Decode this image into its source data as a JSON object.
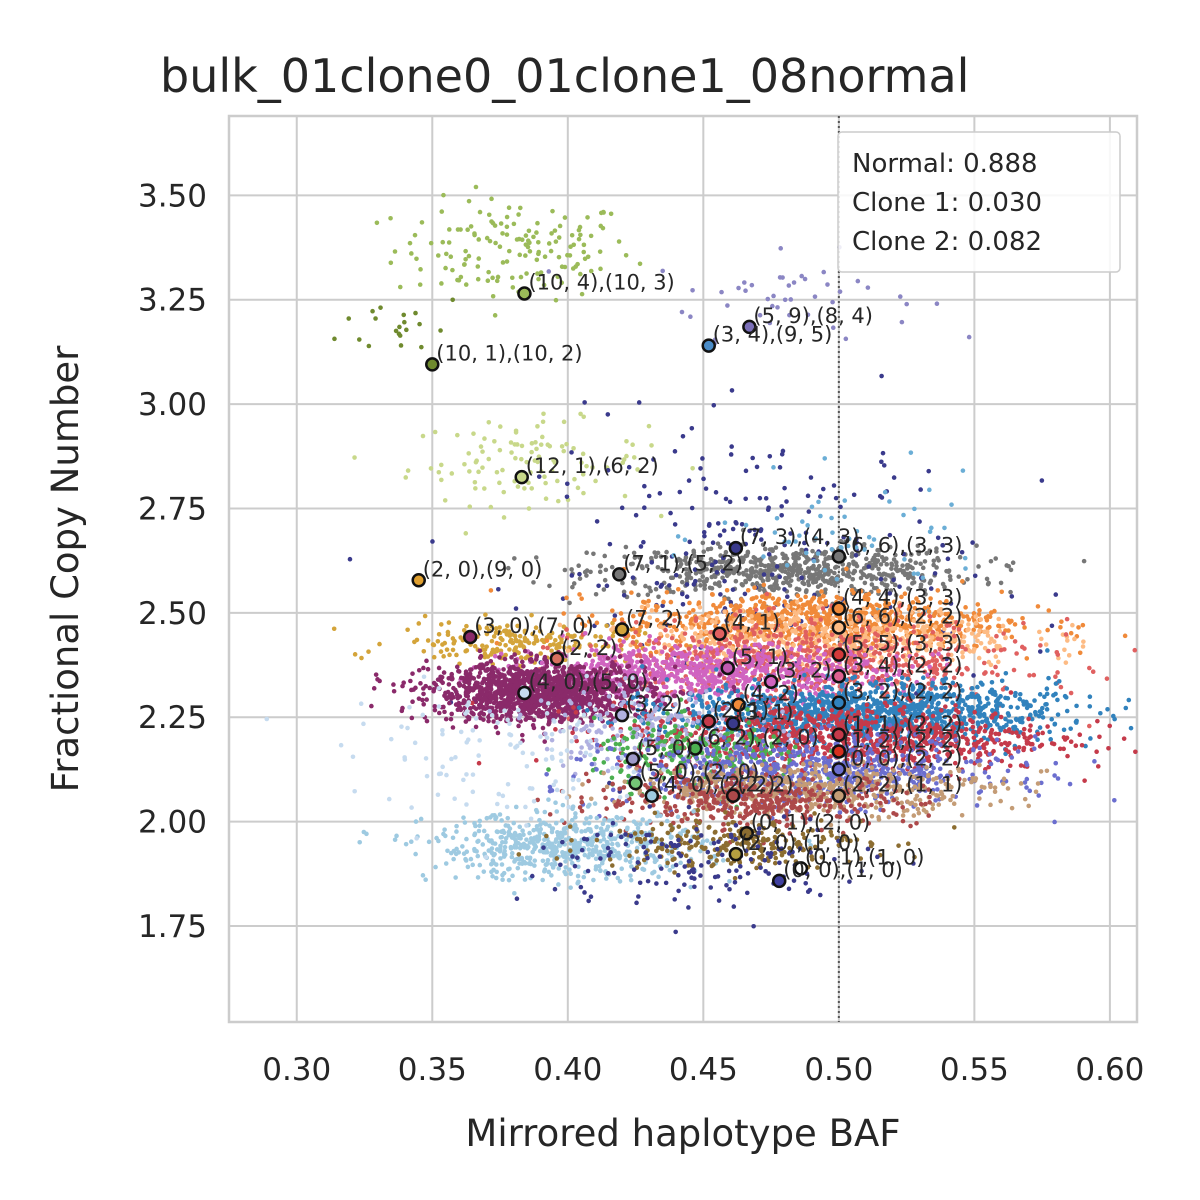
{
  "chart_data": {
    "type": "scatter",
    "title": "bulk_01clone0_01clone1_08normal",
    "xlabel": "Mirrored haplotype BAF",
    "ylabel": "Fractional Copy Number",
    "xlim": [
      0.275,
      0.61
    ],
    "ylim": [
      1.52,
      3.69
    ],
    "x_ticks": [
      "0.30",
      "0.35",
      "0.40",
      "0.45",
      "0.50",
      "0.55",
      "0.60"
    ],
    "y_ticks": [
      "1.75",
      "2.00",
      "2.25",
      "2.50",
      "2.75",
      "3.00",
      "3.25",
      "3.50"
    ],
    "x_tick_values": [
      0.3,
      0.35,
      0.4,
      0.45,
      0.5,
      0.55,
      0.6
    ],
    "y_tick_values": [
      1.75,
      2.0,
      2.25,
      2.5,
      2.75,
      3.0,
      3.25,
      3.5
    ],
    "grid": true,
    "reference_line": {
      "x": 0.5,
      "style": "dotted"
    },
    "legend": {
      "placement": "top-right",
      "entries": [
        "Normal: 0.888",
        "Clone 1: 0.030",
        "Clone 2: 0.082"
      ]
    },
    "cluster_centers": [
      {
        "label": "(10, 4),(10, 3)",
        "x": 0.384,
        "y": 3.265,
        "color": "#9bbb59"
      },
      {
        "label": "(5, 9),(8, 4)",
        "x": 0.467,
        "y": 3.185,
        "color": "#7b6fb8"
      },
      {
        "label": "(3, 4),(9, 5)",
        "x": 0.452,
        "y": 3.14,
        "color": "#4a8cc8"
      },
      {
        "label": "(10, 1),(10, 2)",
        "x": 0.35,
        "y": 3.095,
        "color": "#6f8a2e"
      },
      {
        "label": "(12, 1),(6, 2)",
        "x": 0.383,
        "y": 2.825,
        "color": "#c8d88a"
      },
      {
        "label": "(7, 3),(4, 3)",
        "x": 0.462,
        "y": 2.655,
        "color": "#3a3a8c"
      },
      {
        "label": "(6, 6),(3, 3)",
        "x": 0.5,
        "y": 2.635,
        "color": "#777777"
      },
      {
        "label": "(2, 0),(9, 0)",
        "x": 0.345,
        "y": 2.578,
        "color": "#e0a030"
      },
      {
        "label": "(7, 1),(5, 2)",
        "x": 0.419,
        "y": 2.592,
        "color": "#777777"
      },
      {
        "label": "(4, 4),(3, 3)",
        "x": 0.5,
        "y": 2.51,
        "color": "#f08a3a"
      },
      {
        "label": "(6, 6),(2, 2)",
        "x": 0.5,
        "y": 2.465,
        "color": "#fdbb84"
      },
      {
        "label": "(3, 0),(7, 0)",
        "x": 0.364,
        "y": 2.442,
        "color": "#8a2a6a"
      },
      {
        "label": "(7, 2)",
        "x": 0.42,
        "y": 2.46,
        "color": "#d4a43a"
      },
      {
        "label": "(4, 1)",
        "x": 0.456,
        "y": 2.45,
        "color": "#e06060"
      },
      {
        "label": "(2, 2)",
        "x": 0.396,
        "y": 2.39,
        "color": "#d87060"
      },
      {
        "label": "(5, 5),(3, 3)",
        "x": 0.5,
        "y": 2.4,
        "color": "#d43a3a"
      },
      {
        "label": "(5, 1)",
        "x": 0.459,
        "y": 2.368,
        "color": "#c05ab0"
      },
      {
        "label": "(3, 4),(2, 2)",
        "x": 0.5,
        "y": 2.348,
        "color": "#e06090"
      },
      {
        "label": "(3, 2)",
        "x": 0.475,
        "y": 2.335,
        "color": "#d064c0"
      },
      {
        "label": "(4, 0),(5, 0)",
        "x": 0.384,
        "y": 2.308,
        "color": "#c6dbef"
      },
      {
        "label": "(4, 2)",
        "x": 0.463,
        "y": 2.28,
        "color": "#f08a3a"
      },
      {
        "label": "(3, 2),(2, 2)",
        "x": 0.5,
        "y": 2.285,
        "color": "#3182bd"
      },
      {
        "label": "(3, 2)",
        "x": 0.42,
        "y": 2.255,
        "color": "#b0b0e0"
      },
      {
        "label": "(3, 1)",
        "x": 0.461,
        "y": 2.235,
        "color": "#3a3a8c"
      },
      {
        "label": "(2, 1)",
        "x": 0.452,
        "y": 2.24,
        "color": "#c53a4a"
      },
      {
        "label": "(1, 1),(2, 2)",
        "x": 0.5,
        "y": 2.208,
        "color": "#c53a4a"
      },
      {
        "label": "(1, 2),(2, 2)",
        "x": 0.5,
        "y": 2.168,
        "color": "#d7301f"
      },
      {
        "label": "(6, 2),(2, 0)",
        "x": 0.447,
        "y": 2.175,
        "color": "#4caf50"
      },
      {
        "label": "(5, 0)",
        "x": 0.424,
        "y": 2.15,
        "color": "#9e9ac8"
      },
      {
        "label": "(0, 0),(2, 2)",
        "x": 0.5,
        "y": 2.125,
        "color": "#6b6ecf"
      },
      {
        "label": "(5, 0),(2, 0)",
        "x": 0.425,
        "y": 2.092,
        "color": "#74c476"
      },
      {
        "label": "(4, 0),(2, 2)",
        "x": 0.431,
        "y": 2.062,
        "color": "#9ecae1"
      },
      {
        "label": "(2, 2)",
        "x": 0.461,
        "y": 2.062,
        "color": "#ad494a"
      },
      {
        "label": "(2, 2),(1, 1)",
        "x": 0.5,
        "y": 2.062,
        "color": "#c49c76"
      },
      {
        "label": "(0, 1),(2, 0)",
        "x": 0.466,
        "y": 1.972,
        "color": "#8c6d31"
      },
      {
        "label": "(2, 0),(1, 0)",
        "x": 0.462,
        "y": 1.922,
        "color": "#b5a040"
      },
      {
        "label": "(0, 1),(1, 0)",
        "x": 0.486,
        "y": 1.888,
        "color": "#ffffff"
      },
      {
        "label": "(0, 0),(1, 0)",
        "x": 0.478,
        "y": 1.858,
        "color": "#4040a0"
      }
    ],
    "point_clouds": [
      {
        "color": "#9bbb59",
        "cx": 0.38,
        "cy": 3.37,
        "sx": 0.022,
        "sy": 0.06,
        "n": 150
      },
      {
        "color": "#6f8a2e",
        "cx": 0.34,
        "cy": 3.19,
        "sx": 0.012,
        "sy": 0.04,
        "n": 20
      },
      {
        "color": "#8b86c4",
        "cx": 0.48,
        "cy": 3.26,
        "sx": 0.025,
        "sy": 0.05,
        "n": 45
      },
      {
        "color": "#c8d88a",
        "cx": 0.385,
        "cy": 2.86,
        "sx": 0.022,
        "sy": 0.05,
        "n": 110
      },
      {
        "color": "#777777",
        "cx": 0.48,
        "cy": 2.6,
        "sx": 0.035,
        "sy": 0.03,
        "n": 650
      },
      {
        "color": "#3a3a8c",
        "cx": 0.47,
        "cy": 2.6,
        "sx": 0.04,
        "sy": 0.18,
        "n": 260
      },
      {
        "color": "#6baed6",
        "cx": 0.505,
        "cy": 2.68,
        "sx": 0.025,
        "sy": 0.07,
        "n": 60
      },
      {
        "color": "#d4a43a",
        "cx": 0.38,
        "cy": 2.43,
        "sx": 0.022,
        "sy": 0.025,
        "n": 200
      },
      {
        "color": "#f08a3a",
        "cx": 0.49,
        "cy": 2.48,
        "sx": 0.035,
        "sy": 0.035,
        "n": 800
      },
      {
        "color": "#fdbb84",
        "cx": 0.5,
        "cy": 2.44,
        "sx": 0.035,
        "sy": 0.035,
        "n": 500
      },
      {
        "color": "#e06060",
        "cx": 0.49,
        "cy": 2.38,
        "sx": 0.04,
        "sy": 0.05,
        "n": 700
      },
      {
        "color": "#d064c0",
        "cx": 0.45,
        "cy": 2.36,
        "sx": 0.035,
        "sy": 0.03,
        "n": 700
      },
      {
        "color": "#8a2a6a",
        "cx": 0.39,
        "cy": 2.31,
        "sx": 0.02,
        "sy": 0.035,
        "n": 1400
      },
      {
        "color": "#3182bd",
        "cx": 0.51,
        "cy": 2.26,
        "sx": 0.035,
        "sy": 0.035,
        "n": 1200
      },
      {
        "color": "#c53a4a",
        "cx": 0.5,
        "cy": 2.2,
        "sx": 0.04,
        "sy": 0.04,
        "n": 900
      },
      {
        "color": "#b0b0e0",
        "cx": 0.43,
        "cy": 2.22,
        "sx": 0.02,
        "sy": 0.05,
        "n": 200
      },
      {
        "color": "#4caf50",
        "cx": 0.45,
        "cy": 2.16,
        "sx": 0.02,
        "sy": 0.04,
        "n": 250
      },
      {
        "color": "#6b6ecf",
        "cx": 0.49,
        "cy": 2.12,
        "sx": 0.035,
        "sy": 0.04,
        "n": 700
      },
      {
        "color": "#c49c76",
        "cx": 0.49,
        "cy": 2.08,
        "sx": 0.035,
        "sy": 0.03,
        "n": 500
      },
      {
        "color": "#ad494a",
        "cx": 0.47,
        "cy": 2.05,
        "sx": 0.03,
        "sy": 0.03,
        "n": 400
      },
      {
        "color": "#9ecae1",
        "cx": 0.4,
        "cy": 1.94,
        "sx": 0.025,
        "sy": 0.04,
        "n": 600
      },
      {
        "color": "#c6dbef",
        "cx": 0.38,
        "cy": 2.15,
        "sx": 0.03,
        "sy": 0.08,
        "n": 120
      },
      {
        "color": "#8c6d31",
        "cx": 0.46,
        "cy": 1.95,
        "sx": 0.025,
        "sy": 0.03,
        "n": 250
      },
      {
        "color": "#3a3a8c",
        "cx": 0.45,
        "cy": 1.9,
        "sx": 0.03,
        "sy": 0.06,
        "n": 150
      }
    ]
  }
}
